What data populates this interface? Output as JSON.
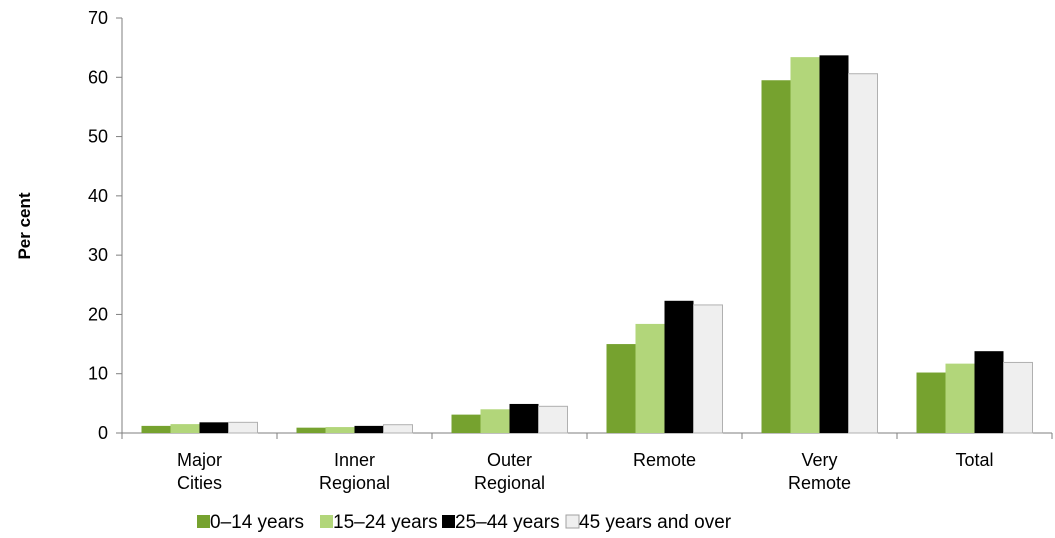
{
  "chart_data": {
    "type": "bar",
    "title": "",
    "xlabel": "",
    "ylabel": "Per cent",
    "ylim": [
      0,
      70
    ],
    "yticks": [
      0,
      10,
      20,
      30,
      40,
      50,
      60,
      70
    ],
    "grid": false,
    "legend_position": "bottom",
    "categories": [
      [
        "Major",
        "Cities"
      ],
      [
        "Inner",
        "Regional"
      ],
      [
        "Outer",
        "Regional"
      ],
      [
        "Remote"
      ],
      [
        "Very",
        "Remote"
      ],
      [
        "Total"
      ]
    ],
    "series": [
      {
        "name": "0–14 years",
        "color": "#76a22f",
        "values": [
          1.2,
          0.9,
          3.1,
          15.0,
          59.5,
          10.2
        ]
      },
      {
        "name": "15–24 years",
        "color": "#b2d67a",
        "values": [
          1.5,
          1.0,
          4.0,
          18.4,
          63.4,
          11.7
        ]
      },
      {
        "name": "25–44 years",
        "color": "#000000",
        "values": [
          1.8,
          1.2,
          4.9,
          22.3,
          63.7,
          13.8
        ]
      },
      {
        "name": "45 years and over",
        "color": "#efefef",
        "values": [
          1.8,
          1.4,
          4.5,
          21.6,
          60.6,
          11.9
        ]
      }
    ]
  }
}
